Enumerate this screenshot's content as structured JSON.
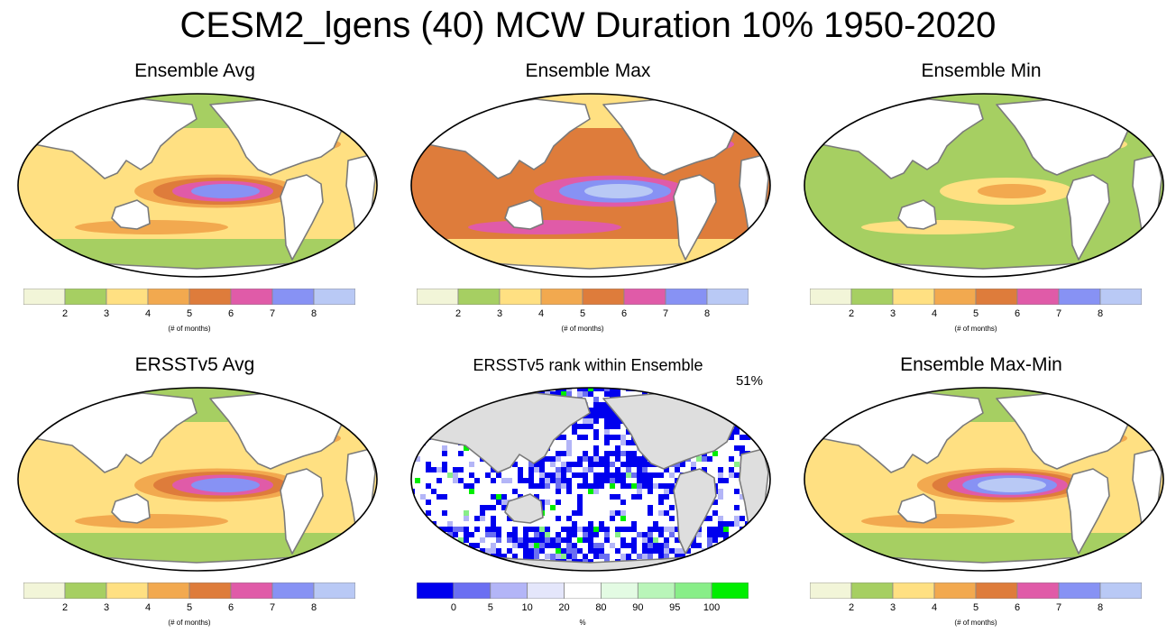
{
  "title": "CESM2_lgens (40) MCW Duration 10% 1950-2020",
  "colors": {
    "duration_scale": [
      "#f2f5d8",
      "#a6cf62",
      "#ffe082",
      "#f2a94f",
      "#de7c3b",
      "#e05ba8",
      "#8792f4",
      "#b9c9f5"
    ],
    "rank_scale": [
      "#0000ee",
      "#6b6ff2",
      "#b3b5f7",
      "#e4e6fb",
      "#ffffff",
      "#e3fbe3",
      "#b9f5b9",
      "#88ee88",
      "#00ee00"
    ],
    "land": "#ffffff",
    "rank_land": "#dedede",
    "coast": "#7a7a7a"
  },
  "chart_data": [
    {
      "type": "heatmap",
      "title": "Ensemble Avg",
      "colorbar_ticks": [
        "2",
        "3",
        "4",
        "5",
        "6",
        "7",
        "8"
      ],
      "colorbar_units": "(# of months)",
      "levels": [
        2,
        3,
        4,
        5,
        6,
        7,
        8
      ],
      "features": {
        "eq_pacific_peak": 7,
        "background": 3,
        "high_latitude": 2
      }
    },
    {
      "type": "heatmap",
      "title": "Ensemble Max",
      "colorbar_ticks": [
        "2",
        "3",
        "4",
        "5",
        "6",
        "7",
        "8"
      ],
      "colorbar_units": "(# of months)",
      "levels": [
        2,
        3,
        4,
        5,
        6,
        7,
        8
      ],
      "features": {
        "eq_pacific_peak": 8,
        "background": 5,
        "high_latitude": 3
      }
    },
    {
      "type": "heatmap",
      "title": "Ensemble Min",
      "colorbar_ticks": [
        "2",
        "3",
        "4",
        "5",
        "6",
        "7",
        "8"
      ],
      "colorbar_units": "(# of months)",
      "levels": [
        2,
        3,
        4,
        5,
        6,
        7,
        8
      ],
      "features": {
        "eq_pacific_peak": 4,
        "background": 2,
        "high_latitude": 2
      }
    },
    {
      "type": "heatmap",
      "title": "ERSSTv5 Avg",
      "colorbar_ticks": [
        "2",
        "3",
        "4",
        "5",
        "6",
        "7",
        "8"
      ],
      "colorbar_units": "(# of months)",
      "levels": [
        2,
        3,
        4,
        5,
        6,
        7,
        8
      ],
      "features": {
        "eq_pacific_peak": 7,
        "background": 3,
        "high_latitude": 2
      }
    },
    {
      "type": "heatmap",
      "title": "ERSSTv5 rank within Ensemble",
      "percent_label": "51%",
      "colorbar_ticks": [
        "0",
        "5",
        "10",
        "20",
        "80",
        "90",
        "95",
        "100"
      ],
      "colorbar_units": "%",
      "levels": [
        0,
        5,
        10,
        20,
        80,
        90,
        95,
        100
      ]
    },
    {
      "type": "heatmap",
      "title": "Ensemble Max-Min",
      "colorbar_ticks": [
        "2",
        "3",
        "4",
        "5",
        "6",
        "7",
        "8"
      ],
      "colorbar_units": "(# of months)",
      "levels": [
        2,
        3,
        4,
        5,
        6,
        7,
        8
      ],
      "features": {
        "eq_pacific_peak": 8,
        "background": 3,
        "high_latitude": 2
      }
    }
  ]
}
